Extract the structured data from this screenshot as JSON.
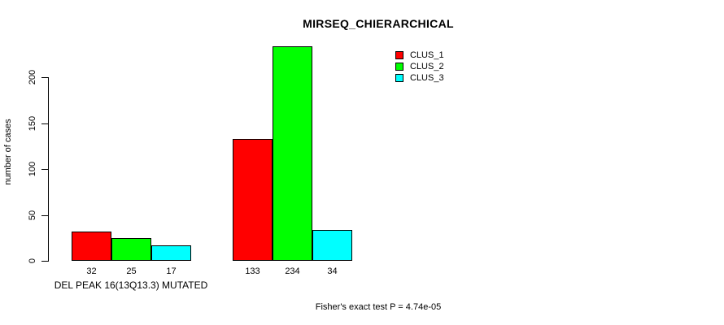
{
  "chart_data": {
    "type": "bar",
    "title": "MIRSEQ_CHIERARCHICAL",
    "ylabel": "number of cases",
    "xlabel": "",
    "categories": [
      "DEL PEAK 16(13Q13.3) MUTATED",
      ""
    ],
    "series": [
      {
        "name": "CLUS_1",
        "color": "#ff0000",
        "values": [
          32,
          133
        ]
      },
      {
        "name": "CLUS_2",
        "color": "#00ff00",
        "values": [
          25,
          234
        ]
      },
      {
        "name": "CLUS_3",
        "color": "#00ffff",
        "values": [
          17,
          34
        ]
      }
    ],
    "yticks": [
      0,
      50,
      100,
      150,
      200
    ],
    "ylim": [
      0,
      240
    ],
    "grid": false,
    "legend_position": "top-right",
    "bar_value_labels_shown": true,
    "annotation": "Fisher's exact test P = 4.74e-05"
  }
}
